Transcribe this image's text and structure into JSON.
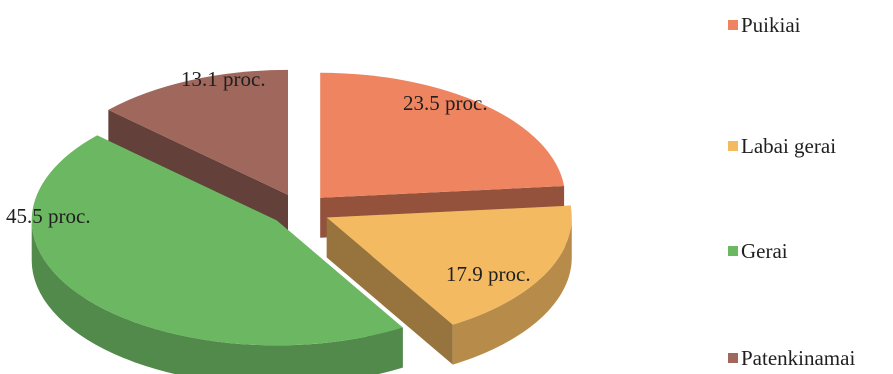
{
  "chart_data": {
    "type": "pie",
    "style": "3d-exploded",
    "legend_position": "right",
    "slices": [
      {
        "name": "Puikiai",
        "value": 23.5,
        "label": "23.5 proc.",
        "color": "#EE8560"
      },
      {
        "name": "Labai gerai",
        "value": 17.9,
        "label": "17.9 proc.",
        "color": "#F4BA62"
      },
      {
        "name": "Gerai",
        "value": 45.5,
        "label": "45.5 proc.",
        "color": "#6CB862"
      },
      {
        "name": "Patenkinamai",
        "value": 13.1,
        "label": "13.1 proc.",
        "color": "#A0685C"
      }
    ]
  }
}
